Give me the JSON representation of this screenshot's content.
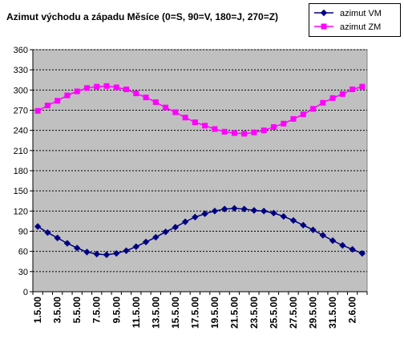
{
  "chart_data": {
    "type": "line",
    "title": "Azimut východu a západu Měsíce (0=S, 90=V, 180=J, 270=Z)",
    "xlabel": "",
    "ylabel": "",
    "ylim": [
      0,
      360
    ],
    "yticks": [
      0,
      30,
      60,
      90,
      120,
      150,
      180,
      210,
      240,
      270,
      300,
      330,
      360
    ],
    "grid": true,
    "legend_position": "top-right",
    "plot_background": "#c0c0c0",
    "x": [
      "1.5.00",
      "2.5.00",
      "3.5.00",
      "4.5.00",
      "5.5.00",
      "6.5.00",
      "7.5.00",
      "8.5.00",
      "9.5.00",
      "10.5.00",
      "11.5.00",
      "12.5.00",
      "13.5.00",
      "14.5.00",
      "15.5.00",
      "16.5.00",
      "17.5.00",
      "18.5.00",
      "19.5.00",
      "20.5.00",
      "21.5.00",
      "22.5.00",
      "23.5.00",
      "24.5.00",
      "25.5.00",
      "26.5.00",
      "27.5.00",
      "28.5.00",
      "29.5.00",
      "30.5.00",
      "31.5.00",
      "1.6.00",
      "2.6.00",
      "3.6.00"
    ],
    "xtick_labels": [
      "1.5.00",
      "3.5.00",
      "5.5.00",
      "7.5.00",
      "9.5.00",
      "11.5.00",
      "13.5.00",
      "15.5.00",
      "17.5.00",
      "19.5.00",
      "21.5.00",
      "23.5.00",
      "25.5.00",
      "27.5.00",
      "29.5.00",
      "31.5.00",
      "2.6.00"
    ],
    "series": [
      {
        "name": "azimut VM",
        "color": "#000080",
        "marker": "diamond",
        "values": [
          97,
          88,
          80,
          72,
          65,
          59,
          56,
          55,
          57,
          61,
          67,
          74,
          81,
          89,
          96,
          104,
          111,
          116,
          120,
          123,
          124,
          123,
          121,
          120,
          117,
          112,
          106,
          99,
          92,
          84,
          76,
          69,
          63,
          57
        ]
      },
      {
        "name": "azimut ZM",
        "color": "#ff00ff",
        "marker": "square",
        "values": [
          269,
          277,
          284,
          292,
          298,
          303,
          305,
          306,
          304,
          301,
          295,
          289,
          282,
          274,
          267,
          259,
          252,
          247,
          242,
          238,
          236,
          235,
          237,
          240,
          245,
          250,
          257,
          264,
          272,
          281,
          288,
          294,
          301,
          305
        ]
      }
    ]
  }
}
